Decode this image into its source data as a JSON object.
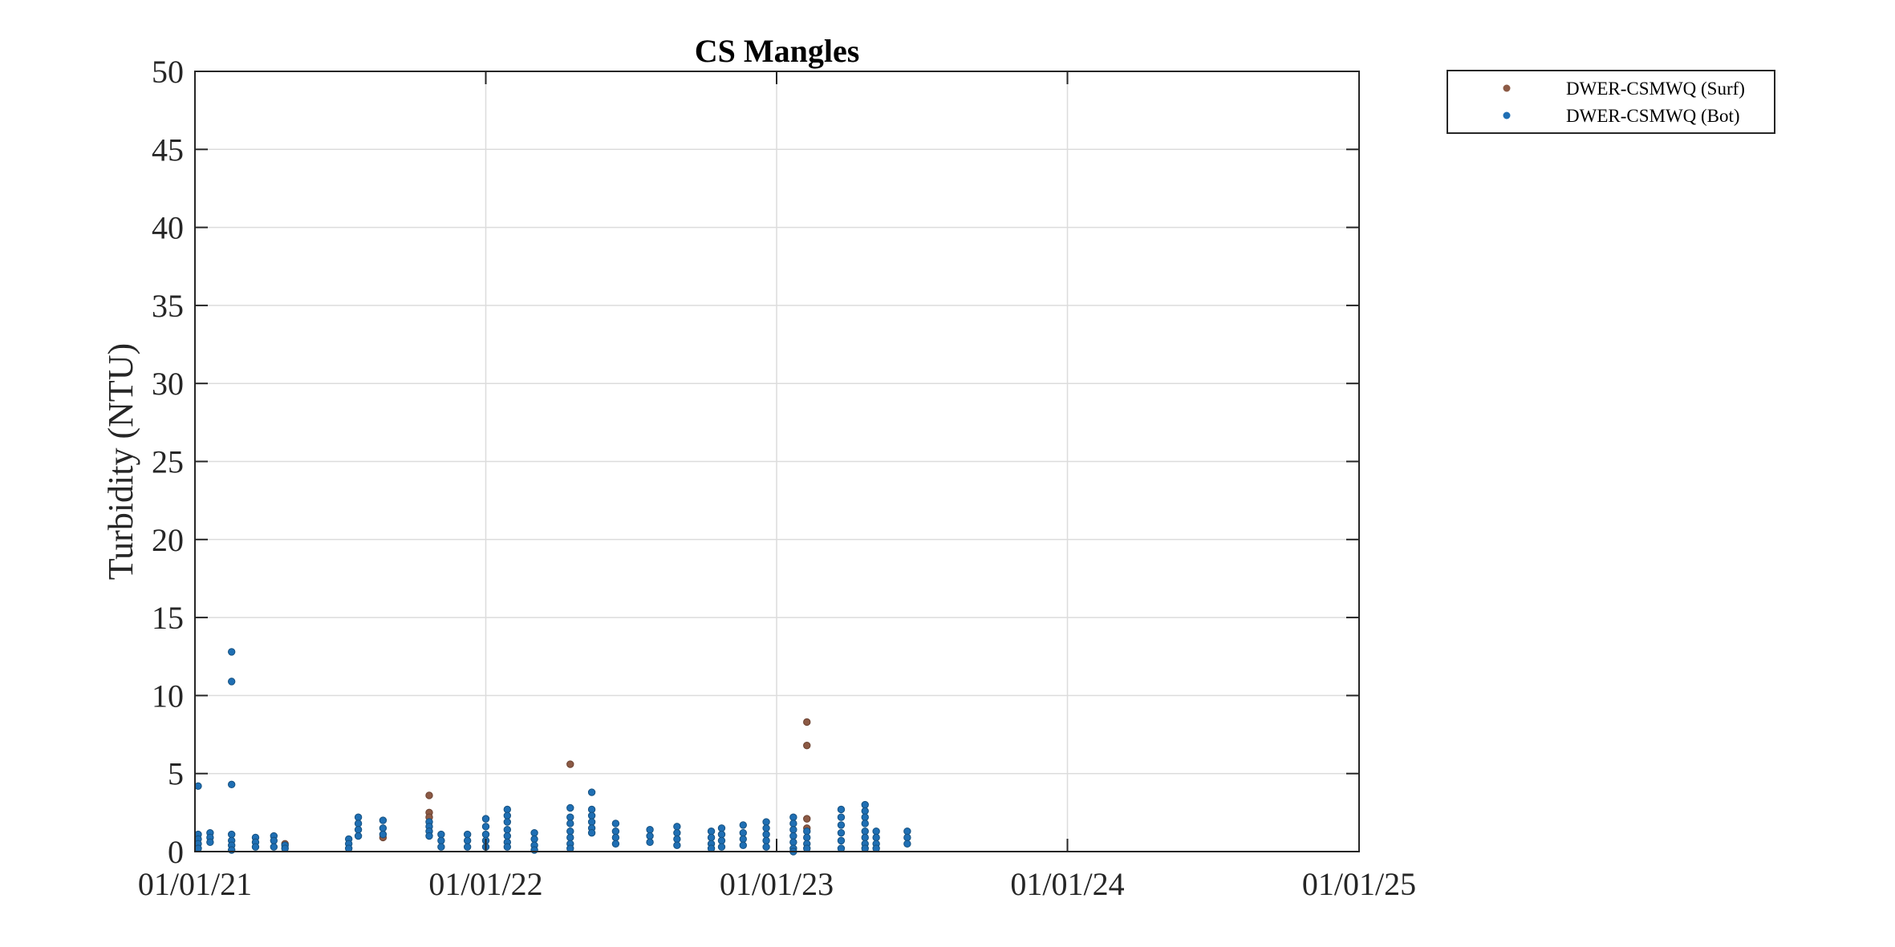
{
  "chart_data": {
    "type": "scatter",
    "title": "CS Mangles",
    "xlabel": "",
    "ylabel": "Turbidity (NTU)",
    "xaxis_type": "date",
    "xlim": [
      "2021-01-01",
      "2025-01-01"
    ],
    "xticks": [
      "2021-01-01",
      "2022-01-01",
      "2023-01-01",
      "2024-01-01",
      "2025-01-01"
    ],
    "xtick_labels": [
      "01/01/21",
      "01/01/22",
      "01/01/23",
      "01/01/24",
      "01/01/25"
    ],
    "ylim": [
      0,
      50
    ],
    "yticks": [
      0,
      5,
      10,
      15,
      20,
      25,
      30,
      35,
      40,
      45,
      50
    ],
    "grid": true,
    "legend_position": "outside-top-right",
    "series": [
      {
        "name": "DWER-CSMWQ (Surf)",
        "color": "#8c5a45",
        "points": [
          [
            "2021-10-22",
            3.6
          ],
          [
            "2021-10-22",
            2.5
          ],
          [
            "2021-10-22",
            2.2
          ],
          [
            "2022-04-17",
            5.6
          ],
          [
            "2023-02-08",
            8.3
          ],
          [
            "2023-02-08",
            6.8
          ],
          [
            "2023-02-08",
            2.1
          ],
          [
            "2023-02-08",
            1.5
          ],
          [
            "2021-04-24",
            0.5
          ],
          [
            "2021-08-25",
            0.9
          ]
        ]
      },
      {
        "name": "DWER-CSMWQ (Bot)",
        "color": "#1f6fb4",
        "points": [
          [
            "2021-01-05",
            4.2
          ],
          [
            "2021-01-05",
            1.1
          ],
          [
            "2021-01-05",
            0.8
          ],
          [
            "2021-01-05",
            0.5
          ],
          [
            "2021-01-05",
            0.2
          ],
          [
            "2021-01-20",
            1.2
          ],
          [
            "2021-01-20",
            0.9
          ],
          [
            "2021-01-20",
            0.6
          ],
          [
            "2021-02-16",
            12.8
          ],
          [
            "2021-02-16",
            10.9
          ],
          [
            "2021-02-16",
            4.3
          ],
          [
            "2021-02-16",
            1.1
          ],
          [
            "2021-02-16",
            0.7
          ],
          [
            "2021-02-16",
            0.4
          ],
          [
            "2021-02-16",
            0.1
          ],
          [
            "2021-03-18",
            0.9
          ],
          [
            "2021-03-18",
            0.6
          ],
          [
            "2021-03-18",
            0.3
          ],
          [
            "2021-04-10",
            1.0
          ],
          [
            "2021-04-10",
            0.7
          ],
          [
            "2021-04-10",
            0.3
          ],
          [
            "2021-04-24",
            0.4
          ],
          [
            "2021-04-24",
            0.2
          ],
          [
            "2021-07-13",
            0.8
          ],
          [
            "2021-07-13",
            0.5
          ],
          [
            "2021-07-13",
            0.2
          ],
          [
            "2021-07-25",
            2.2
          ],
          [
            "2021-07-25",
            1.8
          ],
          [
            "2021-07-25",
            1.4
          ],
          [
            "2021-07-25",
            1.0
          ],
          [
            "2021-08-25",
            2.0
          ],
          [
            "2021-08-25",
            1.5
          ],
          [
            "2021-08-25",
            1.1
          ],
          [
            "2021-10-22",
            1.9
          ],
          [
            "2021-10-22",
            1.6
          ],
          [
            "2021-10-22",
            1.3
          ],
          [
            "2021-10-22",
            1.0
          ],
          [
            "2021-11-06",
            1.1
          ],
          [
            "2021-11-06",
            0.7
          ],
          [
            "2021-11-06",
            0.3
          ],
          [
            "2021-12-09",
            1.1
          ],
          [
            "2021-12-09",
            0.7
          ],
          [
            "2021-12-09",
            0.3
          ],
          [
            "2022-01-01",
            2.1
          ],
          [
            "2022-01-01",
            1.6
          ],
          [
            "2022-01-01",
            1.1
          ],
          [
            "2022-01-01",
            0.7
          ],
          [
            "2022-01-01",
            0.3
          ],
          [
            "2022-01-28",
            2.7
          ],
          [
            "2022-01-28",
            2.3
          ],
          [
            "2022-01-28",
            1.9
          ],
          [
            "2022-01-28",
            1.4
          ],
          [
            "2022-01-28",
            1.0
          ],
          [
            "2022-01-28",
            0.6
          ],
          [
            "2022-01-28",
            0.3
          ],
          [
            "2022-03-03",
            1.2
          ],
          [
            "2022-03-03",
            0.8
          ],
          [
            "2022-03-03",
            0.4
          ],
          [
            "2022-03-03",
            0.1
          ],
          [
            "2022-04-17",
            2.8
          ],
          [
            "2022-04-17",
            2.2
          ],
          [
            "2022-04-17",
            1.8
          ],
          [
            "2022-04-17",
            1.3
          ],
          [
            "2022-04-17",
            0.9
          ],
          [
            "2022-04-17",
            0.5
          ],
          [
            "2022-04-17",
            0.2
          ],
          [
            "2022-05-14",
            3.8
          ],
          [
            "2022-05-14",
            2.7
          ],
          [
            "2022-05-14",
            2.3
          ],
          [
            "2022-05-14",
            1.9
          ],
          [
            "2022-05-14",
            1.5
          ],
          [
            "2022-05-14",
            1.2
          ],
          [
            "2022-06-13",
            1.8
          ],
          [
            "2022-06-13",
            1.3
          ],
          [
            "2022-06-13",
            0.9
          ],
          [
            "2022-06-13",
            0.5
          ],
          [
            "2022-07-26",
            1.4
          ],
          [
            "2022-07-26",
            1.0
          ],
          [
            "2022-07-26",
            0.6
          ],
          [
            "2022-08-29",
            1.6
          ],
          [
            "2022-08-29",
            1.2
          ],
          [
            "2022-08-29",
            0.8
          ],
          [
            "2022-08-29",
            0.4
          ],
          [
            "2022-10-11",
            1.3
          ],
          [
            "2022-10-11",
            0.9
          ],
          [
            "2022-10-11",
            0.5
          ],
          [
            "2022-10-11",
            0.2
          ],
          [
            "2022-10-24",
            1.5
          ],
          [
            "2022-10-24",
            1.1
          ],
          [
            "2022-10-24",
            0.7
          ],
          [
            "2022-10-24",
            0.3
          ],
          [
            "2022-11-20",
            1.7
          ],
          [
            "2022-11-20",
            1.2
          ],
          [
            "2022-11-20",
            0.8
          ],
          [
            "2022-11-20",
            0.4
          ],
          [
            "2022-12-19",
            1.9
          ],
          [
            "2022-12-19",
            1.5
          ],
          [
            "2022-12-19",
            1.1
          ],
          [
            "2022-12-19",
            0.7
          ],
          [
            "2022-12-19",
            0.3
          ],
          [
            "2023-01-22",
            2.2
          ],
          [
            "2023-01-22",
            1.8
          ],
          [
            "2023-01-22",
            1.4
          ],
          [
            "2023-01-22",
            1.0
          ],
          [
            "2023-01-22",
            0.6
          ],
          [
            "2023-01-22",
            0.2
          ],
          [
            "2023-01-22",
            0.0
          ],
          [
            "2023-02-08",
            1.3
          ],
          [
            "2023-02-08",
            0.9
          ],
          [
            "2023-02-08",
            0.5
          ],
          [
            "2023-02-08",
            0.2
          ],
          [
            "2023-03-23",
            2.7
          ],
          [
            "2023-03-23",
            2.2
          ],
          [
            "2023-03-23",
            1.7
          ],
          [
            "2023-03-23",
            1.2
          ],
          [
            "2023-03-23",
            0.7
          ],
          [
            "2023-03-23",
            0.2
          ],
          [
            "2023-04-22",
            3.0
          ],
          [
            "2023-04-22",
            2.6
          ],
          [
            "2023-04-22",
            2.2
          ],
          [
            "2023-04-22",
            1.8
          ],
          [
            "2023-04-22",
            1.3
          ],
          [
            "2023-04-22",
            0.9
          ],
          [
            "2023-04-22",
            0.5
          ],
          [
            "2023-04-22",
            0.2
          ],
          [
            "2023-05-06",
            1.3
          ],
          [
            "2023-05-06",
            0.9
          ],
          [
            "2023-05-06",
            0.5
          ],
          [
            "2023-05-06",
            0.2
          ],
          [
            "2023-06-14",
            1.3
          ],
          [
            "2023-06-14",
            0.9
          ],
          [
            "2023-06-14",
            0.5
          ]
        ]
      }
    ]
  }
}
